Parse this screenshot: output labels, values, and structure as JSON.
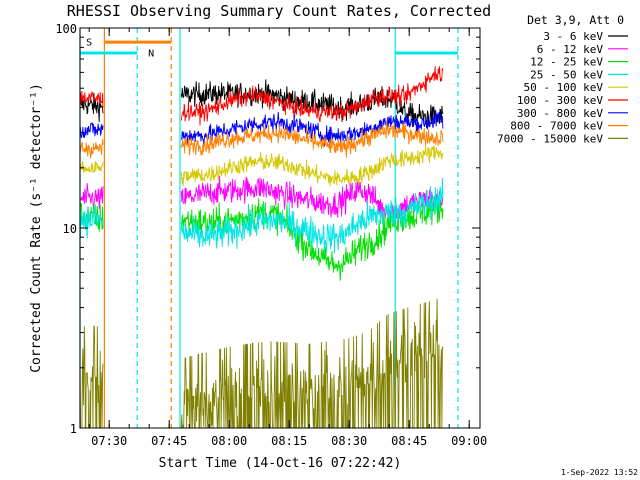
{
  "chart_data": {
    "type": "line",
    "title": "RHESSI Observing Summary Count Rates, Corrected",
    "ylabel": "Corrected Count Rate (s⁻¹ detector⁻¹)",
    "xlabel": "Start Time (14-Oct-16 07:22:42)",
    "x_unit": "minutes since 07:00",
    "xlim": [
      22.7,
      122.7
    ],
    "ylim": [
      1,
      100
    ],
    "y_scale": "log",
    "y_ticks": [
      {
        "value": 1,
        "label": "1"
      },
      {
        "value": 10,
        "label": "10"
      },
      {
        "value": 100,
        "label": "100"
      }
    ],
    "x_ticks": [
      {
        "value": 30,
        "label": "07:30"
      },
      {
        "value": 45,
        "label": "07:45"
      },
      {
        "value": 60,
        "label": "08:00"
      },
      {
        "value": 75,
        "label": "08:15"
      },
      {
        "value": 90,
        "label": "08:30"
      },
      {
        "value": 105,
        "label": "08:45"
      },
      {
        "value": 120,
        "label": "09:00"
      }
    ],
    "legend": {
      "position": "top-right",
      "header": "Det 3,9, Att 0",
      "entries": [
        {
          "label": "3 - 6 keV",
          "color": "#000000"
        },
        {
          "label": "6 - 12 keV",
          "color": "#ff00ff"
        },
        {
          "label": "12 - 25 keV",
          "color": "#00e000"
        },
        {
          "label": "25 - 50 keV",
          "color": "#00e5e5"
        },
        {
          "label": "50 - 100 keV",
          "color": "#d4c800"
        },
        {
          "label": "100 - 300 keV",
          "color": "#ff0000"
        },
        {
          "label": "300 - 800 keV",
          "color": "#0000ff"
        },
        {
          "label": "800 - 7000 keV",
          "color": "#ff8000"
        },
        {
          "label": "7000 - 15000 keV",
          "color": "#808000"
        }
      ]
    },
    "gaps": [
      [
        28.5,
        48.0
      ],
      [
        113.5,
        130
      ]
    ],
    "series": [
      {
        "name": "3 - 6 keV",
        "color": "#000000",
        "noise": 0.045,
        "points": [
          [
            22.7,
            42
          ],
          [
            28.5,
            40
          ],
          [
            48,
            46
          ],
          [
            55,
            47
          ],
          [
            62,
            47
          ],
          [
            70,
            47
          ],
          [
            75,
            44
          ],
          [
            82,
            42
          ],
          [
            88,
            40
          ],
          [
            92,
            41
          ],
          [
            97,
            44
          ],
          [
            101,
            44
          ],
          [
            104,
            37
          ],
          [
            108,
            36
          ],
          [
            112,
            36
          ],
          [
            116,
            36
          ]
        ]
      },
      {
        "name": "6 - 12 keV",
        "color": "#ff00ff",
        "noise": 0.05,
        "points": [
          [
            22.7,
            14
          ],
          [
            28.5,
            14
          ],
          [
            48,
            14
          ],
          [
            55,
            15
          ],
          [
            62,
            15.5
          ],
          [
            68,
            16
          ],
          [
            72,
            15
          ],
          [
            78,
            14
          ],
          [
            82,
            13.5
          ],
          [
            86,
            13
          ],
          [
            89,
            14
          ],
          [
            92,
            15.5
          ],
          [
            95,
            15
          ],
          [
            98,
            12.5
          ],
          [
            101,
            12
          ],
          [
            104,
            13
          ],
          [
            110,
            14
          ],
          [
            116,
            13
          ]
        ]
      },
      {
        "name": "12 - 25 keV",
        "color": "#00e000",
        "noise": 0.06,
        "points": [
          [
            22.7,
            11.5
          ],
          [
            28.5,
            11
          ],
          [
            48,
            11
          ],
          [
            55,
            10.5
          ],
          [
            62,
            11
          ],
          [
            68,
            12
          ],
          [
            72,
            11.5
          ],
          [
            76,
            9.5
          ],
          [
            80,
            8
          ],
          [
            84,
            6.8
          ],
          [
            87,
            6.5
          ],
          [
            90,
            7
          ],
          [
            93,
            8
          ],
          [
            97,
            9
          ],
          [
            101,
            11
          ],
          [
            106,
            11.5
          ],
          [
            112,
            12.5
          ],
          [
            116,
            12.5
          ]
        ]
      },
      {
        "name": "25 - 50 keV",
        "color": "#00e5e5",
        "noise": 0.06,
        "points": [
          [
            22.7,
            11
          ],
          [
            28.5,
            11
          ],
          [
            48,
            9.5
          ],
          [
            54,
            9
          ],
          [
            60,
            9.5
          ],
          [
            66,
            10.5
          ],
          [
            72,
            11
          ],
          [
            78,
            10
          ],
          [
            84,
            9
          ],
          [
            88,
            9
          ],
          [
            92,
            10.5
          ],
          [
            96,
            11.5
          ],
          [
            100,
            12
          ],
          [
            104,
            12
          ],
          [
            108,
            13
          ],
          [
            112,
            14
          ],
          [
            116,
            14
          ]
        ]
      },
      {
        "name": "50 - 100 keV",
        "color": "#d4c800",
        "noise": 0.035,
        "points": [
          [
            22.7,
            20
          ],
          [
            28.5,
            20
          ],
          [
            48,
            18
          ],
          [
            55,
            18.5
          ],
          [
            62,
            20.5
          ],
          [
            68,
            21.5
          ],
          [
            74,
            21
          ],
          [
            80,
            19
          ],
          [
            86,
            17.5
          ],
          [
            92,
            18
          ],
          [
            96,
            19.5
          ],
          [
            100,
            22
          ],
          [
            104,
            22
          ],
          [
            108,
            23
          ],
          [
            112,
            24
          ],
          [
            116,
            24
          ]
        ]
      },
      {
        "name": "100 - 300 keV",
        "color": "#ff0000",
        "noise": 0.035,
        "points": [
          [
            22.7,
            45
          ],
          [
            28.5,
            44
          ],
          [
            48,
            38
          ],
          [
            54,
            38
          ],
          [
            60,
            43
          ],
          [
            66,
            46
          ],
          [
            70,
            44
          ],
          [
            76,
            40
          ],
          [
            82,
            38
          ],
          [
            88,
            38
          ],
          [
            92,
            40
          ],
          [
            96,
            45
          ],
          [
            100,
            46
          ],
          [
            104,
            45
          ],
          [
            108,
            52
          ],
          [
            112,
            60
          ],
          [
            116,
            55
          ]
        ]
      },
      {
        "name": "300 - 800 keV",
        "color": "#0000ff",
        "noise": 0.035,
        "points": [
          [
            22.7,
            31
          ],
          [
            28.5,
            31
          ],
          [
            48,
            29
          ],
          [
            54,
            29
          ],
          [
            60,
            31
          ],
          [
            66,
            33
          ],
          [
            72,
            34
          ],
          [
            78,
            32
          ],
          [
            84,
            29
          ],
          [
            88,
            29
          ],
          [
            92,
            30
          ],
          [
            96,
            32
          ],
          [
            100,
            34
          ],
          [
            104,
            34
          ],
          [
            108,
            33
          ],
          [
            112,
            35
          ],
          [
            116,
            34
          ]
        ]
      },
      {
        "name": "800 - 7000 keV",
        "color": "#ff8000",
        "noise": 0.035,
        "points": [
          [
            22.7,
            25
          ],
          [
            28.5,
            25
          ],
          [
            48,
            26
          ],
          [
            54,
            26
          ],
          [
            60,
            28
          ],
          [
            66,
            29
          ],
          [
            72,
            30
          ],
          [
            78,
            28
          ],
          [
            84,
            26
          ],
          [
            88,
            25
          ],
          [
            92,
            27
          ],
          [
            96,
            29
          ],
          [
            100,
            31
          ],
          [
            104,
            30
          ],
          [
            108,
            29
          ],
          [
            112,
            28
          ],
          [
            116,
            30
          ]
        ]
      },
      {
        "name": "7000 - 15000 keV",
        "color": "#808000",
        "noise": 0.12,
        "points": [
          [
            22.7,
            1.9
          ],
          [
            28.5,
            1.9
          ],
          [
            48,
            1.3
          ],
          [
            60,
            1.5
          ],
          [
            70,
            1.6
          ],
          [
            80,
            1.55
          ],
          [
            90,
            1.65
          ],
          [
            95,
            1.8
          ],
          [
            100,
            2.2
          ],
          [
            106,
            2.4
          ],
          [
            112,
            2.6
          ],
          [
            116,
            2.6
          ]
        ]
      }
    ],
    "annotations": {
      "lines": [
        {
          "x": 22.7,
          "color": "#00e5e5",
          "style": "solid"
        },
        {
          "x": 28.8,
          "color": "#ff8000",
          "style": "solid"
        },
        {
          "x": 37.0,
          "color": "#00e5e5",
          "style": "dashed"
        },
        {
          "x": 45.5,
          "color": "#ff8000",
          "style": "dashed"
        },
        {
          "x": 47.7,
          "color": "#00e5e5",
          "style": "solid"
        },
        {
          "x": 101.5,
          "color": "#00e5e5",
          "style": "solid"
        },
        {
          "x": 117.2,
          "color": "#00e5e5",
          "style": "dashed"
        }
      ],
      "bars": [
        {
          "x0": 22.7,
          "x1": 37.0,
          "y": 75,
          "color": "#00e5e5",
          "label": "N",
          "label_x": 40.5
        },
        {
          "x0": 28.8,
          "x1": 45.5,
          "y": 85,
          "color": "#ff8000",
          "label": "S",
          "label_x": 25.0
        },
        {
          "x0": 101.5,
          "x1": 117.2,
          "y": 75,
          "color": "#00e5e5",
          "label": "",
          "label_x": 0
        }
      ]
    },
    "footer_date": "1-Sep-2022 13:52"
  }
}
